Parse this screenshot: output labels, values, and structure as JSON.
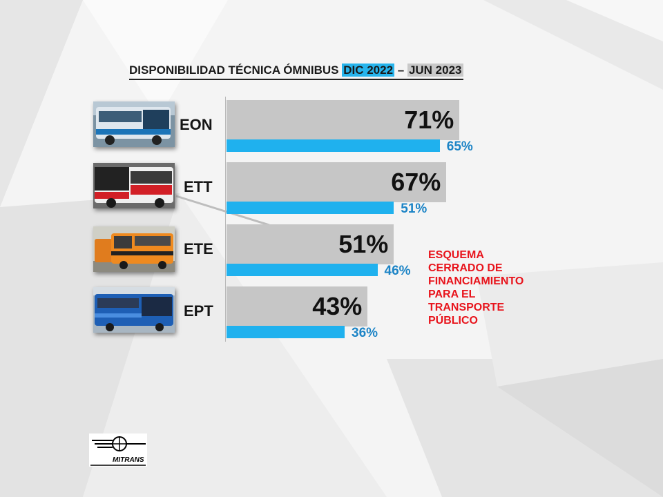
{
  "title": {
    "part1": "DISPONIBILIDAD TÉCNICA ÓMNIBUS ",
    "part2": "DIC 2022",
    "part3": " – ",
    "part4": "JUN 2023"
  },
  "colors": {
    "jun_2023_bar": "#c6c6c6",
    "dic_2022_bar": "#1fb1ee",
    "note_text": "#e8141c",
    "small_value_text": "#1c84c6"
  },
  "chart_data": {
    "type": "bar",
    "orientation": "horizontal",
    "categories": [
      "EON",
      "ETT",
      "ETE",
      "EPT"
    ],
    "series": [
      {
        "values": [
          71,
          67,
          51,
          43
        ],
        "labels": [
          "71%",
          "67%",
          "51%",
          "43%"
        ]
      },
      {
        "values": [
          65,
          51,
          46,
          36
        ],
        "labels": [
          "65%",
          "51%",
          "46%",
          "36%"
        ]
      }
    ],
    "xlim": [
      0,
      100
    ],
    "grid": false
  },
  "thumbnails": [
    "eon-bus-photo",
    "ett-bus-photo",
    "ete-bus-photo",
    "ept-bus-photo"
  ],
  "note": {
    "lines": [
      "ESQUEMA",
      "CERRADO DE",
      "FINANCIAMIENTO",
      "PARA EL",
      "TRANSPORTE",
      "PÚBLICO"
    ]
  },
  "logo": {
    "text": "MITRANS"
  }
}
